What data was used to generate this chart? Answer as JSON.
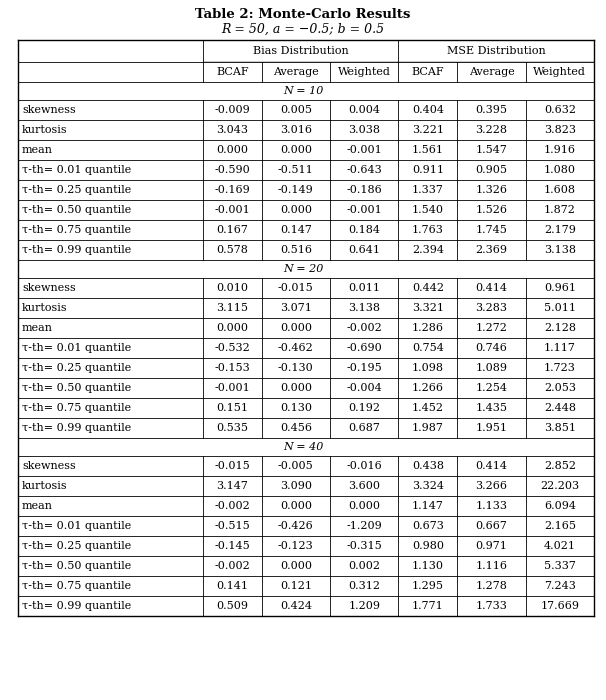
{
  "title": "Table 2: Monte-Carlo Results",
  "subtitle": "R = 50, a = −0.5; b = 0.5",
  "col_headers_level1": [
    "",
    "Bias Distribution",
    "MSE Distribution"
  ],
  "col_headers_level2": [
    "",
    "BCAF",
    "Average",
    "Weighted",
    "BCAF",
    "Average",
    "Weighted"
  ],
  "sections": [
    {
      "section_label": "N = 10",
      "rows": [
        [
          "skewness",
          "-0.009",
          "0.005",
          "0.004",
          "0.404",
          "0.395",
          "0.632"
        ],
        [
          "kurtosis",
          "3.043",
          "3.016",
          "3.038",
          "3.221",
          "3.228",
          "3.823"
        ],
        [
          "mean",
          "0.000",
          "0.000",
          "-0.001",
          "1.561",
          "1.547",
          "1.916"
        ],
        [
          "τ-th= 0.01 quantile",
          "-0.590",
          "-0.511",
          "-0.643",
          "0.911",
          "0.905",
          "1.080"
        ],
        [
          "τ-th= 0.25 quantile",
          "-0.169",
          "-0.149",
          "-0.186",
          "1.337",
          "1.326",
          "1.608"
        ],
        [
          "τ-th= 0.50 quantile",
          "-0.001",
          "0.000",
          "-0.001",
          "1.540",
          "1.526",
          "1.872"
        ],
        [
          "τ-th= 0.75 quantile",
          "0.167",
          "0.147",
          "0.184",
          "1.763",
          "1.745",
          "2.179"
        ],
        [
          "τ-th= 0.99 quantile",
          "0.578",
          "0.516",
          "0.641",
          "2.394",
          "2.369",
          "3.138"
        ]
      ]
    },
    {
      "section_label": "N = 20",
      "rows": [
        [
          "skewness",
          "0.010",
          "-0.015",
          "0.011",
          "0.442",
          "0.414",
          "0.961"
        ],
        [
          "kurtosis",
          "3.115",
          "3.071",
          "3.138",
          "3.321",
          "3.283",
          "5.011"
        ],
        [
          "mean",
          "0.000",
          "0.000",
          "-0.002",
          "1.286",
          "1.272",
          "2.128"
        ],
        [
          "τ-th= 0.01 quantile",
          "-0.532",
          "-0.462",
          "-0.690",
          "0.754",
          "0.746",
          "1.117"
        ],
        [
          "τ-th= 0.25 quantile",
          "-0.153",
          "-0.130",
          "-0.195",
          "1.098",
          "1.089",
          "1.723"
        ],
        [
          "τ-th= 0.50 quantile",
          "-0.001",
          "0.000",
          "-0.004",
          "1.266",
          "1.254",
          "2.053"
        ],
        [
          "τ-th= 0.75 quantile",
          "0.151",
          "0.130",
          "0.192",
          "1.452",
          "1.435",
          "2.448"
        ],
        [
          "τ-th= 0.99 quantile",
          "0.535",
          "0.456",
          "0.687",
          "1.987",
          "1.951",
          "3.851"
        ]
      ]
    },
    {
      "section_label": "N = 40",
      "rows": [
        [
          "skewness",
          "-0.015",
          "-0.005",
          "-0.016",
          "0.438",
          "0.414",
          "2.852"
        ],
        [
          "kurtosis",
          "3.147",
          "3.090",
          "3.600",
          "3.324",
          "3.266",
          "22.203"
        ],
        [
          "mean",
          "-0.002",
          "0.000",
          "0.000",
          "1.147",
          "1.133",
          "6.094"
        ],
        [
          "τ-th= 0.01 quantile",
          "-0.515",
          "-0.426",
          "-1.209",
          "0.673",
          "0.667",
          "2.165"
        ],
        [
          "τ-th= 0.25 quantile",
          "-0.145",
          "-0.123",
          "-0.315",
          "0.980",
          "0.971",
          "4.021"
        ],
        [
          "τ-th= 0.50 quantile",
          "-0.002",
          "0.000",
          "0.002",
          "1.130",
          "1.116",
          "5.337"
        ],
        [
          "τ-th= 0.75 quantile",
          "0.141",
          "0.121",
          "0.312",
          "1.295",
          "1.278",
          "7.243"
        ],
        [
          "τ-th= 0.99 quantile",
          "0.509",
          "0.424",
          "1.209",
          "1.771",
          "1.733",
          "17.669"
        ]
      ]
    }
  ],
  "bg_color": "white",
  "text_color": "black",
  "line_color": "black",
  "font_size": 8.0,
  "header_font_size": 8.0,
  "title_font_size": 9.5
}
